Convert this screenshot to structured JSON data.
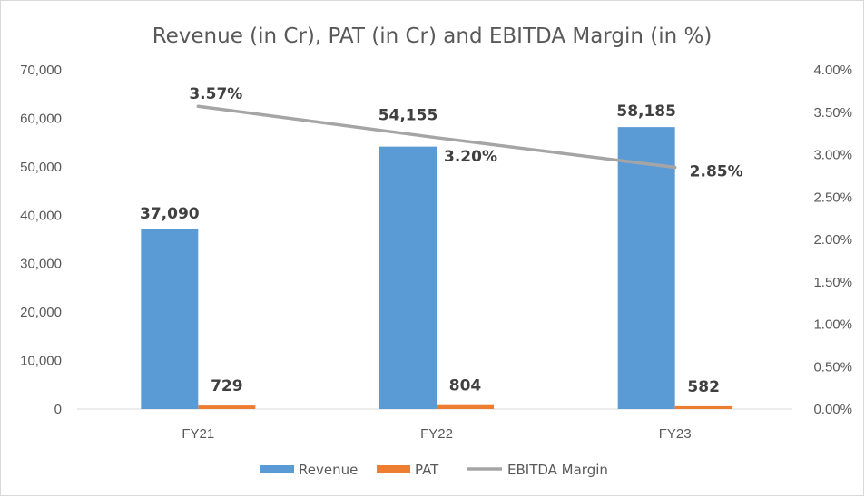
{
  "chart_data": {
    "type": "bar+line",
    "title": "Revenue (in Cr), PAT (in Cr) and EBITDA Margin (in %)",
    "categories": [
      "FY21",
      "FY22",
      "FY23"
    ],
    "series": [
      {
        "name": "Revenue",
        "type": "bar",
        "axis": "left",
        "color": "#5B9BD5",
        "values": [
          37090,
          54155,
          58185
        ],
        "labels": [
          "37,090",
          "54,155",
          "58,185"
        ]
      },
      {
        "name": "PAT",
        "type": "bar",
        "axis": "left",
        "color": "#ED7D31",
        "values": [
          729,
          804,
          582
        ],
        "labels": [
          "729",
          "804",
          "582"
        ]
      },
      {
        "name": "EBITDA Margin",
        "type": "line",
        "axis": "right",
        "color": "#A5A5A5",
        "values": [
          3.57,
          3.2,
          2.85
        ],
        "labels": [
          "3.57%",
          "3.20%",
          "2.85%"
        ]
      }
    ],
    "y_left": {
      "min": 0,
      "max": 70000,
      "ticks": [
        "0",
        "10,000",
        "20,000",
        "30,000",
        "40,000",
        "50,000",
        "60,000",
        "70,000"
      ]
    },
    "y_right": {
      "min": 0,
      "max": 4,
      "ticks": [
        "0.00%",
        "0.50%",
        "1.00%",
        "1.50%",
        "2.00%",
        "2.50%",
        "3.00%",
        "3.50%",
        "4.00%"
      ]
    },
    "grid": false,
    "legend": "bottom"
  }
}
